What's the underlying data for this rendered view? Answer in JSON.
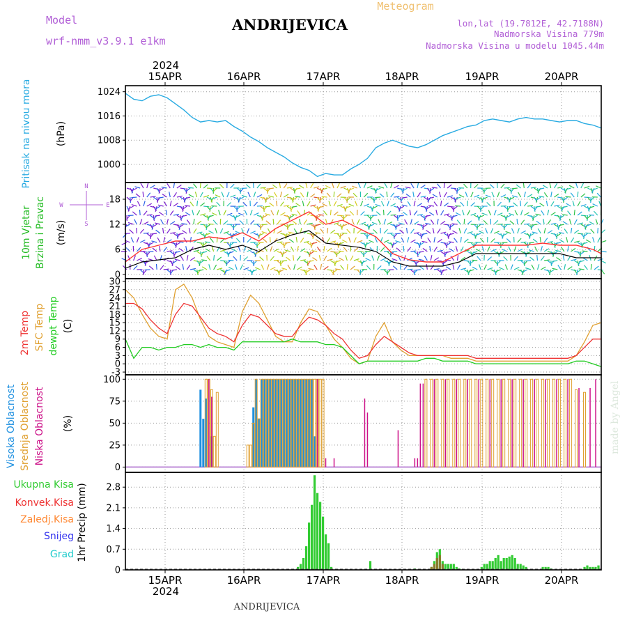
{
  "header": {
    "model_label": "Model",
    "model_value": "wrf-nmm_v3.9.1 e1km",
    "station": "ANDRIJEVICA",
    "product": "Meteogram",
    "lonlat": "lon,lat (19.7812E, 42.7188N)",
    "elevation": "Nadmorska Visina 779m",
    "model_elevation": "Nadmorska Visina u modelu 1045.44m",
    "year": "2024",
    "footer_station": "ANDRIJEVICA",
    "credit": "made by Angel"
  },
  "days": [
    "15APR",
    "16APR",
    "17APR",
    "18APR",
    "19APR",
    "20APR"
  ],
  "colors": {
    "pressure": "#29abe2",
    "wind_speed": "#000000",
    "wind_gust": "#ff3333",
    "temp": "#ee3333",
    "sfc_temp": "#e0a030",
    "dewpt": "#22cc22",
    "cloud_high": "#1e90e0",
    "cloud_mid": "#e0a030",
    "cloud_low": "#cc1188",
    "rain_total": "#33cc33",
    "rain_conv": "#ee3333",
    "rain_frozen": "#ff8833",
    "snow": "#3333ee",
    "graupel": "#22cccc",
    "grid": "#999999"
  },
  "chart_data": [
    {
      "type": "line",
      "name": "pressure",
      "ylabel": "Pritisak na nivou mora",
      "unit": "(hPa)",
      "ylim": [
        994,
        1026
      ],
      "yticks": [
        1000,
        1008,
        1016,
        1024
      ],
      "x_hours": [
        0,
        3,
        6,
        9,
        12,
        15,
        18,
        21,
        24,
        27,
        30,
        33,
        36,
        39,
        42,
        45,
        48,
        51,
        54,
        57,
        60,
        63,
        66,
        69,
        72,
        75,
        78,
        81,
        84,
        87,
        90,
        93,
        96,
        99,
        102,
        105,
        108,
        111,
        114,
        117,
        120,
        123,
        126,
        129,
        132,
        135,
        138,
        141,
        144,
        147,
        150,
        153,
        156,
        159,
        162,
        165,
        168,
        171
      ],
      "values": [
        1023.5,
        1021.5,
        1021.0,
        1022.5,
        1023.0,
        1022.0,
        1020.0,
        1018.0,
        1015.5,
        1014.0,
        1014.5,
        1014.0,
        1014.5,
        1012.5,
        1011.0,
        1009.0,
        1007.5,
        1005.5,
        1004.0,
        1002.5,
        1000.5,
        999.0,
        998.0,
        996.0,
        997.0,
        996.5,
        996.5,
        998.5,
        1000.0,
        1002.0,
        1005.5,
        1007.0,
        1008.0,
        1007.0,
        1006.0,
        1005.5,
        1006.5,
        1008.0,
        1009.5,
        1010.5,
        1011.5,
        1012.5,
        1013.0,
        1014.5,
        1015.0,
        1014.5,
        1014.0,
        1015.0,
        1015.5,
        1015.0,
        1015.0,
        1014.5,
        1014.0,
        1014.5,
        1014.5,
        1013.5,
        1013.0,
        1012.0
      ]
    },
    {
      "type": "line",
      "name": "wind",
      "ylabel": "10m Vjetar Brzina i Pravac",
      "unit": "(m/s)",
      "compass": [
        "N",
        "W",
        "E",
        "S"
      ],
      "ylim": [
        -1,
        22
      ],
      "yticks": [
        0,
        6,
        12,
        18
      ],
      "series": [
        {
          "name": "speed",
          "x_hours": [
            0,
            6,
            12,
            18,
            24,
            30,
            36,
            42,
            48,
            54,
            60,
            66,
            72,
            78,
            84,
            90,
            96,
            102,
            108,
            114,
            120,
            126,
            132,
            138,
            144,
            150,
            156,
            162,
            168,
            171
          ],
          "values": [
            1.5,
            3.0,
            3.5,
            4.0,
            6.0,
            7.0,
            6.0,
            7.0,
            5.5,
            8.0,
            9.5,
            10.5,
            7.5,
            7.0,
            6.5,
            5.5,
            3.0,
            2.0,
            2.0,
            2.0,
            3.0,
            5.0,
            5.0,
            5.0,
            5.0,
            5.0,
            5.0,
            4.0,
            4.0,
            4.0
          ]
        },
        {
          "name": "gust",
          "x_hours": [
            0,
            6,
            12,
            18,
            24,
            30,
            36,
            42,
            48,
            54,
            60,
            66,
            72,
            78,
            84,
            90,
            96,
            102,
            108,
            114,
            120,
            126,
            132,
            138,
            144,
            150,
            156,
            162,
            168,
            171
          ],
          "values": [
            3.0,
            6.0,
            7.0,
            8.0,
            8.0,
            9.0,
            8.5,
            10.0,
            8.0,
            11.0,
            13.0,
            15.0,
            12.0,
            13.0,
            11.0,
            9.0,
            5.0,
            3.5,
            3.0,
            3.0,
            5.0,
            7.0,
            7.0,
            7.0,
            7.0,
            7.5,
            7.0,
            7.0,
            6.0,
            5.0
          ]
        }
      ]
    },
    {
      "type": "line",
      "name": "temperature",
      "ylabels": [
        "2m Temp",
        "SFC Temp",
        "dewpt Temp"
      ],
      "unit": "(C)",
      "ylim": [
        -4,
        31
      ],
      "yticks": [
        -3,
        0,
        3,
        6,
        9,
        12,
        15,
        18,
        21,
        24,
        27,
        30
      ],
      "series": [
        {
          "name": "2m",
          "x_hours": [
            0,
            3,
            6,
            9,
            12,
            15,
            18,
            21,
            24,
            27,
            30,
            33,
            36,
            39,
            42,
            45,
            48,
            51,
            54,
            57,
            60,
            63,
            66,
            69,
            72,
            75,
            78,
            81,
            84,
            87,
            90,
            93,
            96,
            99,
            102,
            105,
            108,
            111,
            114,
            117,
            120,
            123,
            126,
            129,
            132,
            135,
            138,
            141,
            144,
            147,
            150,
            153,
            156,
            159,
            162,
            165,
            168,
            171
          ],
          "values": [
            22,
            22,
            20,
            16,
            13,
            11,
            18,
            22,
            21,
            17,
            13,
            11,
            10,
            8,
            14,
            18,
            17,
            14,
            11,
            10,
            10,
            14,
            17,
            16,
            14,
            11,
            9,
            5,
            2,
            3,
            7,
            10,
            8,
            6,
            4,
            3,
            3,
            3,
            3,
            3,
            3,
            3,
            2,
            2,
            2,
            2,
            2,
            2,
            2,
            2,
            2,
            2,
            2,
            2,
            3,
            6,
            9,
            9
          ]
        },
        {
          "name": "sfc",
          "x_hours": [
            0,
            3,
            6,
            9,
            12,
            15,
            18,
            21,
            24,
            27,
            30,
            33,
            36,
            39,
            42,
            45,
            48,
            51,
            54,
            57,
            60,
            63,
            66,
            69,
            72,
            75,
            78,
            81,
            84,
            87,
            90,
            93,
            96,
            99,
            102,
            105,
            108,
            111,
            114,
            117,
            120,
            123,
            126,
            129,
            132,
            135,
            138,
            141,
            144,
            147,
            150,
            153,
            156,
            159,
            162,
            165,
            168,
            171
          ],
          "values": [
            27,
            24,
            18,
            13,
            10,
            9,
            27,
            29,
            24,
            16,
            10,
            8,
            7,
            6,
            19,
            25,
            22,
            16,
            10,
            8,
            8,
            15,
            20,
            19,
            14,
            9,
            6,
            2,
            0,
            1,
            10,
            15,
            8,
            5,
            3,
            3,
            3,
            3,
            3,
            2,
            2,
            2,
            1,
            1,
            1,
            1,
            1,
            1,
            1,
            1,
            1,
            1,
            1,
            1,
            3,
            8,
            14,
            15
          ]
        },
        {
          "name": "dewpt",
          "x_hours": [
            0,
            3,
            6,
            9,
            12,
            15,
            18,
            21,
            24,
            27,
            30,
            33,
            36,
            39,
            42,
            45,
            48,
            51,
            54,
            57,
            60,
            63,
            66,
            69,
            72,
            75,
            78,
            81,
            84,
            87,
            90,
            93,
            96,
            99,
            102,
            105,
            108,
            111,
            114,
            117,
            120,
            123,
            126,
            129,
            132,
            135,
            138,
            141,
            144,
            147,
            150,
            153,
            156,
            159,
            162,
            165,
            168,
            171
          ],
          "values": [
            9,
            2,
            6,
            6,
            5,
            6,
            6,
            7,
            7,
            6,
            7,
            6,
            6,
            5,
            8,
            8,
            8,
            8,
            8,
            8,
            9,
            8,
            8,
            8,
            7,
            7,
            6,
            3,
            0,
            1,
            1,
            1,
            1,
            1,
            1,
            1,
            2,
            2,
            1,
            1,
            1,
            1,
            0,
            0,
            0,
            0,
            0,
            0,
            0,
            0,
            0,
            0,
            0,
            0,
            1,
            1,
            0,
            -1
          ]
        }
      ]
    },
    {
      "type": "bar",
      "name": "cloud",
      "ylabels": [
        "Visoka Oblacnost",
        "Srednja Oblacnost",
        "Niska Oblacnost"
      ],
      "unit": "(%)",
      "ylim": [
        -6,
        105
      ],
      "yticks": [
        0,
        25,
        50,
        75,
        100
      ],
      "series": [
        {
          "name": "high",
          "x_hours": [
            27,
            28,
            29,
            31,
            46,
            47,
            48,
            49,
            50,
            51,
            52,
            53,
            54,
            55,
            56,
            57,
            58,
            59,
            60,
            61,
            62,
            63,
            64,
            65,
            66,
            67,
            68
          ],
          "values": [
            88,
            55,
            78,
            35,
            68,
            100,
            55,
            100,
            100,
            100,
            100,
            100,
            100,
            100,
            100,
            100,
            100,
            100,
            100,
            100,
            100,
            100,
            100,
            100,
            100,
            100,
            35
          ]
        },
        {
          "name": "mid",
          "x_hours": [
            29,
            30,
            31,
            32,
            33,
            44,
            45,
            46,
            47,
            48,
            49,
            50,
            51,
            52,
            53,
            54,
            55,
            56,
            57,
            58,
            59,
            60,
            61,
            62,
            63,
            64,
            65,
            66,
            67,
            68,
            69,
            70,
            71,
            108,
            110,
            112,
            114,
            116,
            118,
            120,
            122,
            124,
            126,
            128,
            130,
            132,
            134,
            136,
            138,
            140,
            142,
            144,
            146,
            148,
            150,
            152,
            154,
            156,
            158,
            160,
            162,
            165
          ],
          "values": [
            100,
            100,
            88,
            35,
            85,
            25,
            25,
            50,
            100,
            55,
            100,
            100,
            100,
            100,
            100,
            100,
            100,
            100,
            100,
            100,
            100,
            100,
            100,
            100,
            100,
            100,
            100,
            100,
            100,
            100,
            100,
            100,
            100,
            100,
            100,
            100,
            100,
            100,
            100,
            100,
            100,
            100,
            100,
            100,
            100,
            100,
            100,
            100,
            100,
            100,
            100,
            100,
            100,
            100,
            100,
            100,
            100,
            100,
            100,
            100,
            88,
            85
          ]
        },
        {
          "name": "low",
          "x_hours": [
            30,
            31,
            69,
            72,
            75,
            86,
            87,
            98,
            104,
            105,
            106,
            107,
            111,
            115,
            119,
            123,
            127,
            131,
            135,
            139,
            143,
            147,
            151,
            155,
            159,
            163,
            167,
            169
          ],
          "values": [
            100,
            80,
            100,
            10,
            10,
            78,
            62,
            42,
            10,
            10,
            95,
            95,
            100,
            100,
            100,
            100,
            100,
            100,
            100,
            100,
            100,
            100,
            100,
            100,
            100,
            90,
            90,
            100
          ]
        }
      ]
    },
    {
      "type": "bar",
      "name": "precip",
      "ylabel": "1hr Precip",
      "unit": "(mm)",
      "legend": [
        "Ukupna Kisa",
        "Konvek.Kisa",
        "Zaledj.Kisa",
        "Snijeg",
        "Grad"
      ],
      "ylim": [
        0,
        3.3
      ],
      "yticks": [
        0,
        0.7,
        1.4,
        2.1,
        2.8
      ],
      "series": [
        {
          "name": "total",
          "x_hours": [
            62,
            63,
            64,
            65,
            66,
            67,
            68,
            69,
            70,
            71,
            72,
            73,
            74,
            88,
            104,
            110,
            111,
            112,
            113,
            114,
            115,
            116,
            117,
            118,
            119,
            120,
            128,
            129,
            130,
            131,
            132,
            133,
            134,
            135,
            136,
            137,
            138,
            139,
            140,
            141,
            142,
            143,
            144,
            150,
            151,
            152,
            153,
            165,
            166,
            167,
            168,
            169,
            170
          ],
          "values": [
            0.1,
            0.2,
            0.4,
            0.8,
            1.6,
            2.2,
            3.2,
            2.6,
            2.3,
            1.8,
            1.2,
            0.9,
            0.1,
            0.3,
            0.05,
            0.1,
            0.3,
            0.6,
            0.7,
            0.3,
            0.2,
            0.2,
            0.2,
            0.2,
            0.1,
            0.05,
            0.1,
            0.2,
            0.2,
            0.3,
            0.3,
            0.4,
            0.5,
            0.3,
            0.4,
            0.4,
            0.45,
            0.5,
            0.4,
            0.2,
            0.2,
            0.15,
            0.1,
            0.1,
            0.1,
            0.1,
            0.05,
            0.1,
            0.15,
            0.1,
            0.1,
            0.1,
            0.15
          ]
        },
        {
          "name": "convective",
          "x_hours": [
            110,
            111,
            112,
            113,
            114
          ],
          "values": [
            0.1,
            0.2,
            0.4,
            0.5,
            0.2
          ]
        }
      ]
    }
  ]
}
